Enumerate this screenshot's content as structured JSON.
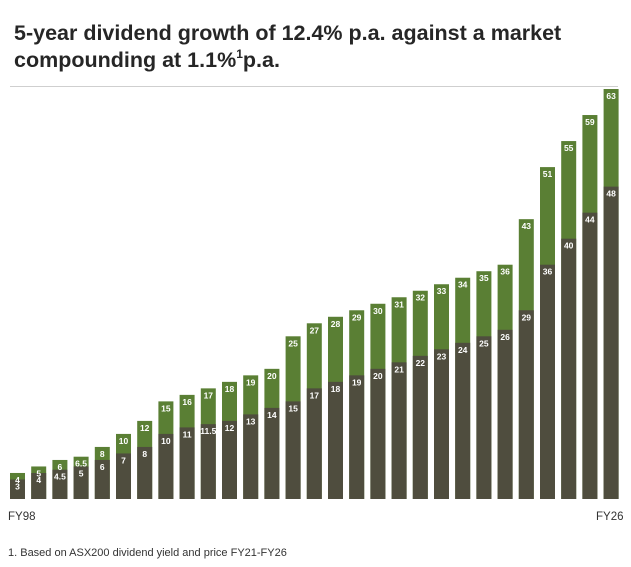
{
  "title": {
    "line1": "5-year dividend growth of 12.4% p.a. against a market",
    "line2_text": "compounding at 1.1%",
    "line2_sup": "1",
    "line2_tail": "p.a."
  },
  "footnote": "1.  Based on ASX200 dividend yield and price FY21-FY26",
  "colors": {
    "total": "#5a7f34",
    "base": "#4f4d3e",
    "rule": "#cfcfcf",
    "label_text": "#ffffff"
  },
  "chart_data": {
    "type": "bar",
    "xlabel": "",
    "ylabel": "",
    "x_axis_labels": {
      "start": "FY98",
      "end": "FY26"
    },
    "ylim": [
      0,
      63
    ],
    "series": [
      {
        "values": [
          "3",
          "4",
          "4.5",
          "5",
          "6",
          "7",
          "8",
          "10",
          "11",
          "11.5",
          "12",
          "13",
          "14",
          "15",
          "17",
          "18",
          "19",
          "20",
          "21",
          "22",
          "23",
          "24",
          "25",
          "26",
          "29",
          "36",
          "40",
          "44",
          "48"
        ]
      },
      {
        "values": [
          "4",
          "5",
          "6",
          "6.5",
          "8",
          "10",
          "12",
          "15",
          "16",
          "17",
          "18",
          "19",
          "20",
          "25",
          "27",
          "28",
          "29",
          "30",
          "31",
          "32",
          "33",
          "34",
          "35",
          "36",
          "43",
          "51",
          "55",
          "59",
          "63"
        ]
      }
    ]
  }
}
